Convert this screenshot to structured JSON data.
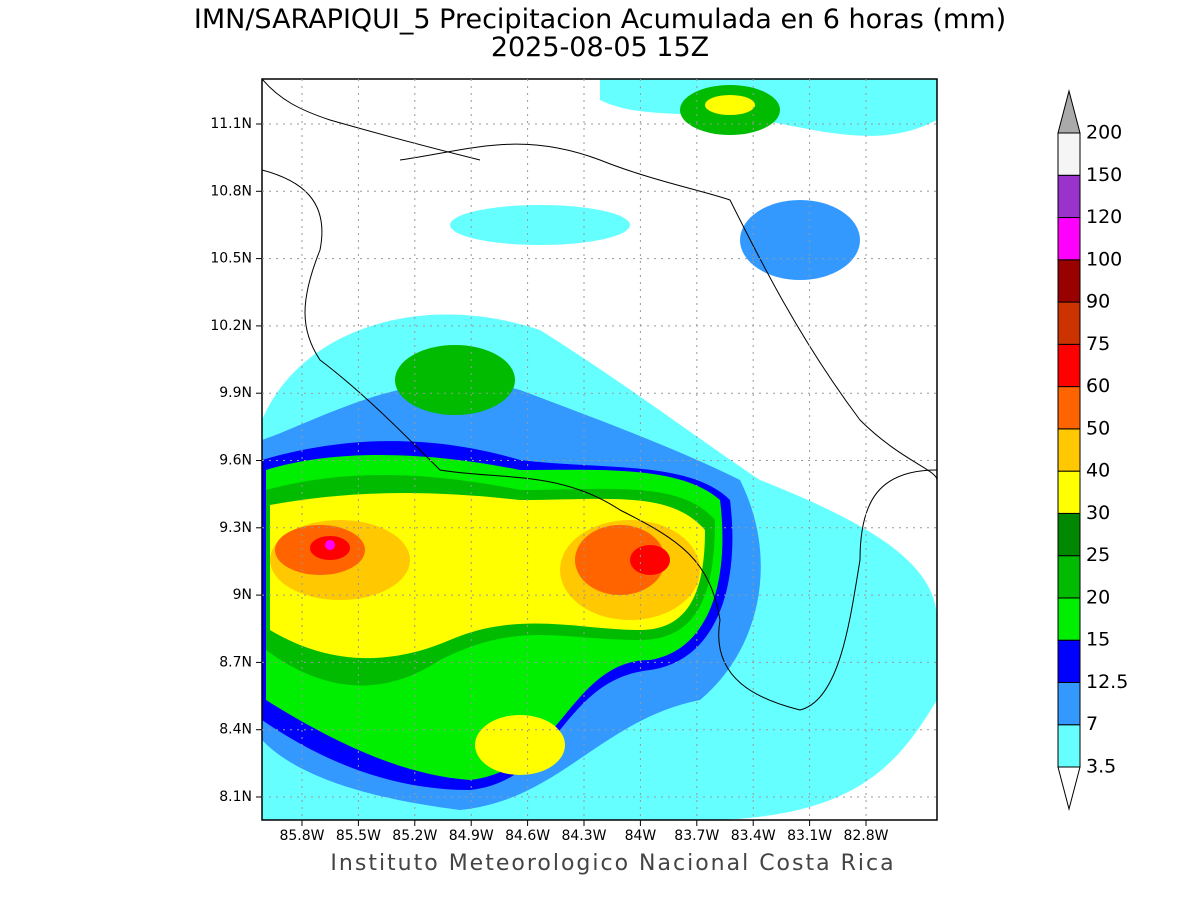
{
  "title": "IMN/SARAPIQUI_5 Precipitacion Acumulada en 6 horas (mm)",
  "subtitle": "2025-08-05 15Z",
  "footer": "Instituto Meteorologico Nacional Costa Rica",
  "lat_ticks": [
    "11.1N",
    "10.8N",
    "10.5N",
    "10.2N",
    "9.9N",
    "9.6N",
    "9.3N",
    "9N",
    "8.7N",
    "8.4N",
    "8.1N"
  ],
  "lon_ticks": [
    "85.8W",
    "85.5W",
    "85.2W",
    "84.9W",
    "84.6W",
    "84.3W",
    "84W",
    "83.7W",
    "83.4W",
    "83.1W",
    "82.8W"
  ],
  "colorbar": {
    "labels": [
      "3.5",
      "7",
      "12.5",
      "15",
      "20",
      "25",
      "30",
      "40",
      "50",
      "60",
      "75",
      "90",
      "100",
      "120",
      "150",
      "200"
    ],
    "colors": [
      "#66ffff",
      "#3399ff",
      "#0000ff",
      "#00ee00",
      "#00bb00",
      "#008800",
      "#ffff00",
      "#ffc800",
      "#ff6400",
      "#ff0000",
      "#cc3300",
      "#990000",
      "#ff00ff",
      "#9933cc",
      "#f5f5f5"
    ],
    "under_color": "#ffffff",
    "over_color": "#aaaaaa"
  }
}
